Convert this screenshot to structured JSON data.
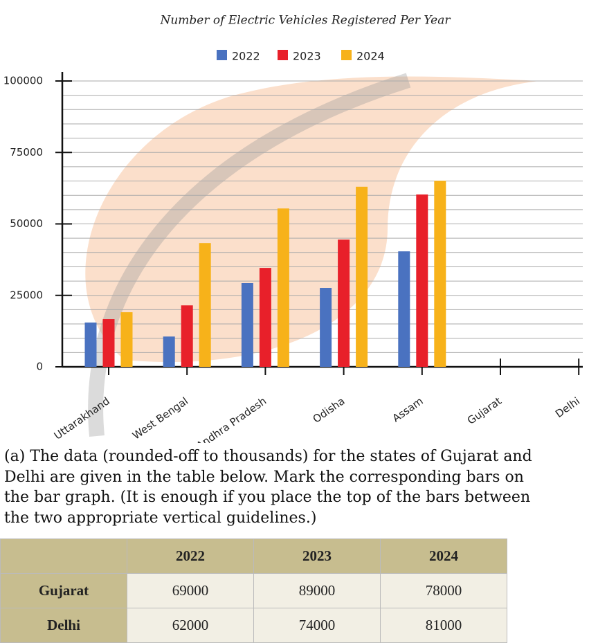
{
  "chart_data": {
    "type": "bar",
    "title": "Number of Electric Vehicles Registered Per Year",
    "categories": [
      "Uttarakhand",
      "West Bengal",
      "Andhra Pradesh",
      "Odisha",
      "Assam",
      "Gujarat",
      "Delhi"
    ],
    "series": [
      {
        "name": "2022",
        "color": "#4a72c0",
        "values": [
          15500,
          10600,
          29300,
          27600,
          40400,
          null,
          null
        ]
      },
      {
        "name": "2023",
        "color": "#e8202a",
        "values": [
          16700,
          21500,
          34600,
          44500,
          60300,
          null,
          null
        ]
      },
      {
        "name": "2024",
        "color": "#f7b21a",
        "values": [
          19100,
          43300,
          55400,
          63000,
          65100,
          null,
          null
        ]
      }
    ],
    "ylim": [
      0,
      100000
    ],
    "yticks": [
      0,
      25000,
      50000,
      75000,
      100000
    ],
    "minor_yticks": [
      5000,
      10000,
      15000,
      20000,
      30000,
      35000,
      40000,
      45000,
      55000,
      60000,
      65000,
      70000,
      80000,
      85000,
      90000,
      95000
    ],
    "grid": true,
    "legend": "top"
  },
  "question": "(a) The data (rounded-off to thousands) for the states of Gujarat and Delhi are given in the table below. Mark the corresponding bars on the bar graph. (It is enough if you place the top of the bars between the two appropriate vertical guidelines.)",
  "table": {
    "header": [
      "",
      "2022",
      "2023",
      "2024"
    ],
    "rows": [
      [
        "Gujarat",
        "69000",
        "89000",
        "78000"
      ],
      [
        "Delhi",
        "62000",
        "74000",
        "81000"
      ]
    ]
  }
}
